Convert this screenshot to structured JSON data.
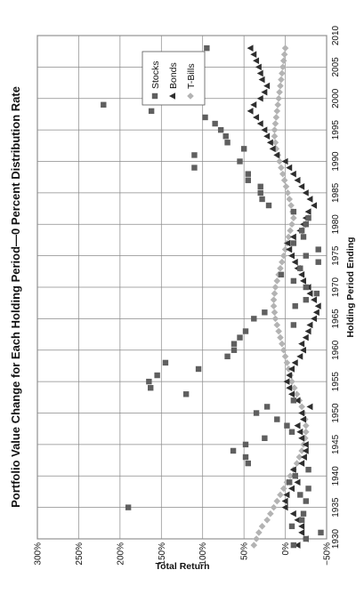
{
  "chart_data": {
    "type": "scatter",
    "title": "Portfolio Value Change for Each Holding Period—0 Percent Distribution Rate",
    "xlabel": "Holding Period Ending",
    "ylabel": "Total Return",
    "xlim": [
      1930,
      2010
    ],
    "ylim": [
      -50,
      300
    ],
    "x_ticks": [
      "1930",
      "1935",
      "1940",
      "1945",
      "1950",
      "1955",
      "1960",
      "1965",
      "1970",
      "1975",
      "1980",
      "1985",
      "1990",
      "1995",
      "2000",
      "2005",
      "2010"
    ],
    "y_ticks": [
      "300%",
      "250%",
      "200%",
      "150%",
      "100%",
      "50%",
      "0%",
      "−50%"
    ],
    "grid": true,
    "legend_position": "top-right",
    "series": [
      {
        "name": "Stocks",
        "marker": "square",
        "color": "#5f5f5f",
        "points": [
          [
            1929,
            -10
          ],
          [
            1930,
            -25
          ],
          [
            1931,
            -43
          ],
          [
            1932,
            -8
          ],
          [
            1933,
            -20
          ],
          [
            1934,
            -22
          ],
          [
            1935,
            190
          ],
          [
            1936,
            -25
          ],
          [
            1937,
            -18
          ],
          [
            1938,
            -28
          ],
          [
            1939,
            -5
          ],
          [
            1940,
            -12
          ],
          [
            1941,
            -28
          ],
          [
            1942,
            45
          ],
          [
            1943,
            48
          ],
          [
            1944,
            63
          ],
          [
            1945,
            48
          ],
          [
            1946,
            25
          ],
          [
            1947,
            -8
          ],
          [
            1948,
            -2
          ],
          [
            1949,
            10
          ],
          [
            1950,
            35
          ],
          [
            1951,
            22
          ],
          [
            1952,
            -10
          ],
          [
            1953,
            120
          ],
          [
            1954,
            163
          ],
          [
            1955,
            165
          ],
          [
            1956,
            155
          ],
          [
            1957,
            105
          ],
          [
            1958,
            145
          ],
          [
            1959,
            70
          ],
          [
            1960,
            62
          ],
          [
            1961,
            62
          ],
          [
            1962,
            55
          ],
          [
            1963,
            48
          ],
          [
            1964,
            -10
          ],
          [
            1965,
            38
          ],
          [
            1966,
            25
          ],
          [
            1967,
            -12
          ],
          [
            1968,
            -25
          ],
          [
            1969,
            -38
          ],
          [
            1970,
            -25
          ],
          [
            1971,
            -10
          ],
          [
            1972,
            5
          ],
          [
            1973,
            -18
          ],
          [
            1974,
            -40
          ],
          [
            1975,
            -25
          ],
          [
            1976,
            -40
          ],
          [
            1977,
            -10
          ],
          [
            1978,
            -22
          ],
          [
            1979,
            -20
          ],
          [
            1980,
            -25
          ],
          [
            1981,
            -28
          ],
          [
            1982,
            -10
          ],
          [
            1983,
            20
          ],
          [
            1984,
            28
          ],
          [
            1985,
            30
          ],
          [
            1986,
            30
          ],
          [
            1987,
            45
          ],
          [
            1988,
            45
          ],
          [
            1989,
            110
          ],
          [
            1990,
            55
          ],
          [
            1991,
            110
          ],
          [
            1992,
            50
          ],
          [
            1993,
            70
          ],
          [
            1994,
            72
          ],
          [
            1995,
            78
          ],
          [
            1996,
            85
          ],
          [
            1997,
            97
          ],
          [
            1998,
            162
          ],
          [
            1999,
            220
          ],
          [
            2000,
            105
          ],
          [
            2001,
            125
          ],
          [
            2002,
            135
          ],
          [
            2003,
            145
          ],
          [
            2004,
            150
          ],
          [
            2005,
            155
          ],
          [
            2006,
            150
          ],
          [
            2007,
            160
          ],
          [
            2008,
            95
          ]
        ]
      },
      {
        "name": "Bonds",
        "marker": "triangle",
        "color": "#2e2e2e",
        "points": [
          [
            1929,
            -15
          ],
          [
            1930,
            -25
          ],
          [
            1931,
            -20
          ],
          [
            1932,
            -20
          ],
          [
            1933,
            -15
          ],
          [
            1934,
            -10
          ],
          [
            1935,
            0
          ],
          [
            1936,
            0
          ],
          [
            1937,
            -2
          ],
          [
            1938,
            -8
          ],
          [
            1939,
            -15
          ],
          [
            1940,
            -12
          ],
          [
            1941,
            -10
          ],
          [
            1942,
            -20
          ],
          [
            1943,
            -23
          ],
          [
            1944,
            -25
          ],
          [
            1945,
            -25
          ],
          [
            1946,
            -20
          ],
          [
            1947,
            -18
          ],
          [
            1948,
            -15
          ],
          [
            1949,
            -22
          ],
          [
            1950,
            -20
          ],
          [
            1951,
            -30
          ],
          [
            1952,
            -15
          ],
          [
            1953,
            -8
          ],
          [
            1954,
            -5
          ],
          [
            1955,
            -2
          ],
          [
            1956,
            -5
          ],
          [
            1957,
            -8
          ],
          [
            1958,
            -12
          ],
          [
            1959,
            -18
          ],
          [
            1960,
            -22
          ],
          [
            1961,
            -20
          ],
          [
            1962,
            -25
          ],
          [
            1963,
            -28
          ],
          [
            1964,
            -30
          ],
          [
            1965,
            -35
          ],
          [
            1966,
            -38
          ],
          [
            1967,
            -40
          ],
          [
            1968,
            -35
          ],
          [
            1969,
            -30
          ],
          [
            1970,
            -28
          ],
          [
            1971,
            -22
          ],
          [
            1972,
            -20
          ],
          [
            1973,
            -15
          ],
          [
            1974,
            -12
          ],
          [
            1975,
            -8
          ],
          [
            1976,
            -5
          ],
          [
            1977,
            -3
          ],
          [
            1978,
            -10
          ],
          [
            1979,
            -18
          ],
          [
            1980,
            -22
          ],
          [
            1981,
            -25
          ],
          [
            1982,
            -28
          ],
          [
            1983,
            -35
          ],
          [
            1984,
            -30
          ],
          [
            1985,
            -25
          ],
          [
            1986,
            -20
          ],
          [
            1987,
            -15
          ],
          [
            1988,
            -10
          ],
          [
            1989,
            -5
          ],
          [
            1990,
            0
          ],
          [
            1991,
            10
          ],
          [
            1992,
            15
          ],
          [
            1993,
            18
          ],
          [
            1994,
            22
          ],
          [
            1995,
            25
          ],
          [
            1996,
            30
          ],
          [
            1997,
            35
          ],
          [
            1998,
            42
          ],
          [
            1999,
            38
          ],
          [
            2000,
            30
          ],
          [
            2001,
            25
          ],
          [
            2002,
            22
          ],
          [
            2003,
            28
          ],
          [
            2004,
            30
          ],
          [
            2005,
            32
          ],
          [
            2006,
            35
          ],
          [
            2007,
            38
          ],
          [
            2008,
            42
          ]
        ]
      },
      {
        "name": "T-Bills",
        "marker": "diamond",
        "color": "#b3b3b3",
        "points": [
          [
            1929,
            38
          ],
          [
            1930,
            35
          ],
          [
            1931,
            32
          ],
          [
            1932,
            28
          ],
          [
            1933,
            22
          ],
          [
            1934,
            18
          ],
          [
            1935,
            14
          ],
          [
            1936,
            10
          ],
          [
            1937,
            6
          ],
          [
            1938,
            2
          ],
          [
            1939,
            -2
          ],
          [
            1940,
            -6
          ],
          [
            1941,
            -10
          ],
          [
            1942,
            -14
          ],
          [
            1943,
            -17
          ],
          [
            1944,
            -20
          ],
          [
            1945,
            -22
          ],
          [
            1946,
            -24
          ],
          [
            1947,
            -25
          ],
          [
            1948,
            -25
          ],
          [
            1949,
            -24
          ],
          [
            1950,
            -22
          ],
          [
            1951,
            -20
          ],
          [
            1952,
            -17
          ],
          [
            1953,
            -14
          ],
          [
            1954,
            -11
          ],
          [
            1955,
            -8
          ],
          [
            1956,
            -6
          ],
          [
            1957,
            -4
          ],
          [
            1958,
            -2
          ],
          [
            1959,
            0
          ],
          [
            1960,
            2
          ],
          [
            1961,
            4
          ],
          [
            1962,
            6
          ],
          [
            1963,
            8
          ],
          [
            1964,
            10
          ],
          [
            1965,
            12
          ],
          [
            1966,
            13
          ],
          [
            1967,
            14
          ],
          [
            1968,
            14
          ],
          [
            1969,
            13
          ],
          [
            1970,
            12
          ],
          [
            1971,
            10
          ],
          [
            1972,
            8
          ],
          [
            1973,
            6
          ],
          [
            1974,
            4
          ],
          [
            1975,
            2
          ],
          [
            1976,
            0
          ],
          [
            1977,
            -2
          ],
          [
            1978,
            -4
          ],
          [
            1979,
            -6
          ],
          [
            1980,
            -8
          ],
          [
            1981,
            -10
          ],
          [
            1982,
            -9
          ],
          [
            1983,
            -7
          ],
          [
            1984,
            -5
          ],
          [
            1985,
            -3
          ],
          [
            1986,
            -1
          ],
          [
            1987,
            1
          ],
          [
            1988,
            3
          ],
          [
            1989,
            5
          ],
          [
            1990,
            7
          ],
          [
            1991,
            9
          ],
          [
            1992,
            11
          ],
          [
            1993,
            12
          ],
          [
            1994,
            13
          ],
          [
            1995,
            13
          ],
          [
            1996,
            12
          ],
          [
            1997,
            11
          ],
          [
            1998,
            10
          ],
          [
            1999,
            9
          ],
          [
            2000,
            8
          ],
          [
            2001,
            7
          ],
          [
            2002,
            6
          ],
          [
            2003,
            5
          ],
          [
            2004,
            4
          ],
          [
            2005,
            3
          ],
          [
            2006,
            2
          ],
          [
            2007,
            1
          ],
          [
            2008,
            0
          ]
        ]
      }
    ]
  }
}
